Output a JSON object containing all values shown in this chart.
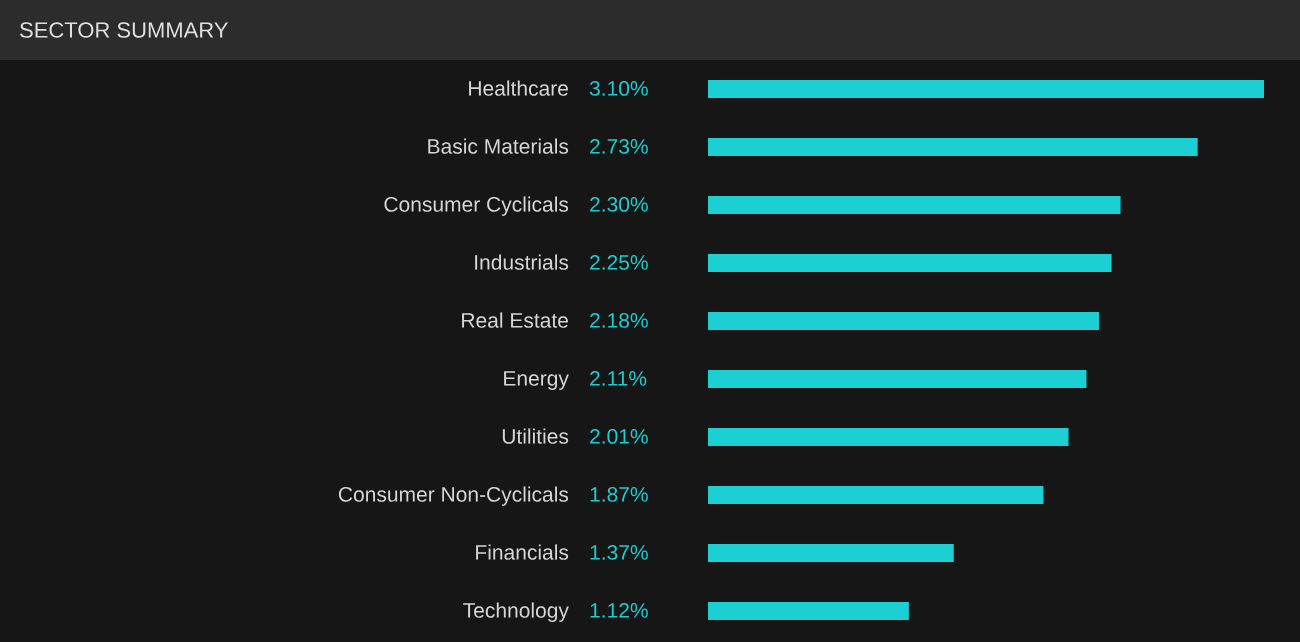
{
  "chart_data": {
    "type": "bar",
    "orientation": "horizontal",
    "title": "SECTOR SUMMARY",
    "categories": [
      "Healthcare",
      "Basic Materials",
      "Consumer Cyclicals",
      "Industrials",
      "Real Estate",
      "Energy",
      "Utilities",
      "Consumer Non-Cyclicals",
      "Financials",
      "Technology"
    ],
    "values": [
      3.1,
      2.73,
      2.3,
      2.25,
      2.18,
      2.11,
      2.01,
      1.87,
      1.37,
      1.12
    ],
    "value_labels": [
      "3.10%",
      "2.73%",
      "2.30%",
      "2.25%",
      "2.18%",
      "2.11%",
      "2.01%",
      "1.87%",
      "1.37%",
      "1.12%"
    ],
    "color": "#1ccfd2"
  }
}
